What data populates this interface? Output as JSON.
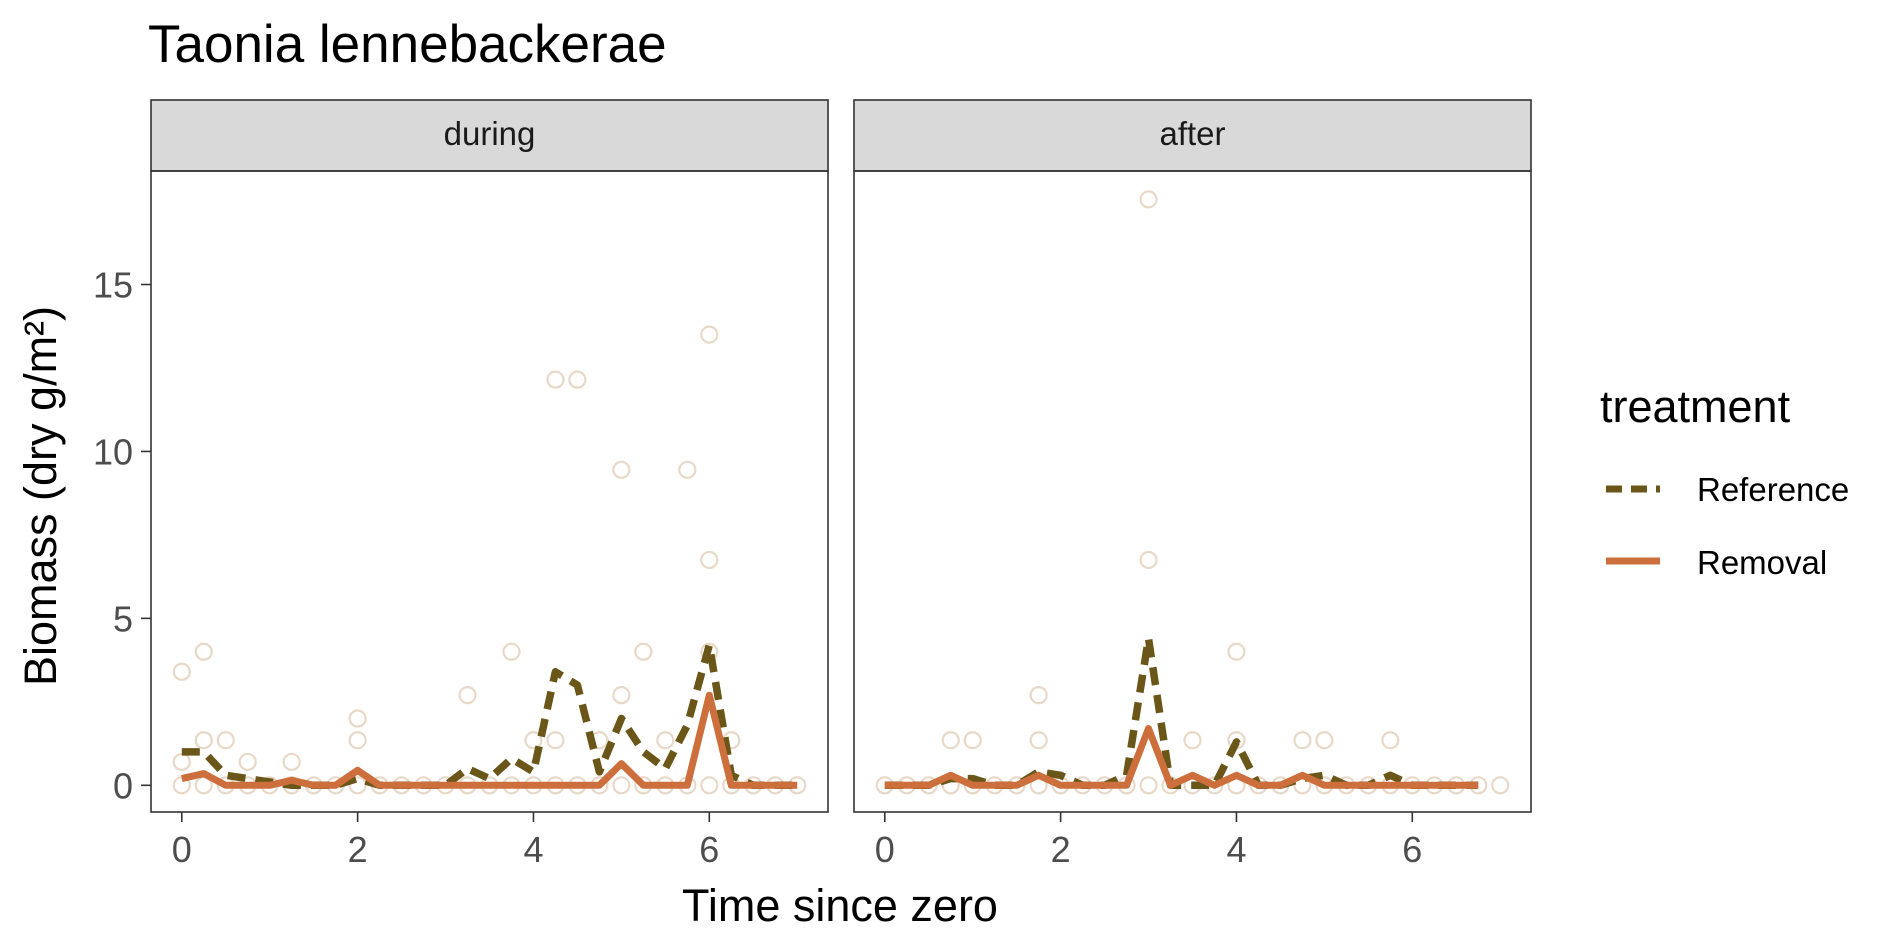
{
  "chart_data": {
    "type": "line",
    "title": "Taonia lennebackerae",
    "xlabel": "Time since zero",
    "ylabel": "Biomass (dry g/m²)",
    "ylim": [
      -0.8,
      18.4
    ],
    "yticks": [
      0,
      5,
      10,
      15
    ],
    "legend": {
      "title": "treatment",
      "position": "right",
      "entries": [
        {
          "label": "Reference",
          "color": "#6b561a",
          "style": "dashed"
        },
        {
          "label": "Removal",
          "color": "#cd6f3c",
          "style": "solid"
        }
      ]
    },
    "facets": [
      {
        "label": "during",
        "xlim": [
          -0.35,
          7.35
        ],
        "xticks": [
          0,
          2,
          4,
          6
        ],
        "series": [
          {
            "name": "Reference",
            "x": [
              0,
              0.25,
              0.5,
              0.75,
              1,
              1.25,
              1.5,
              1.75,
              2,
              2.25,
              2.5,
              2.75,
              3,
              3.25,
              3.5,
              3.75,
              4,
              4.25,
              4.5,
              4.75,
              5,
              5.25,
              5.5,
              5.75,
              6,
              6.25,
              6.5,
              6.75,
              7
            ],
            "y": [
              1.0,
              1.0,
              0.3,
              0.2,
              0.1,
              0,
              0,
              0,
              0.2,
              0,
              0,
              0,
              0,
              0.5,
              0.2,
              0.8,
              0.4,
              3.4,
              3.0,
              0.4,
              2.0,
              1.0,
              0.5,
              1.8,
              4.2,
              0.3,
              0,
              0,
              0
            ]
          },
          {
            "name": "Removal",
            "x": [
              0,
              0.25,
              0.5,
              0.75,
              1,
              1.25,
              1.5,
              1.75,
              2,
              2.25,
              2.5,
              2.75,
              3,
              3.25,
              3.5,
              3.75,
              4,
              4.25,
              4.5,
              4.75,
              5,
              5.25,
              5.5,
              5.75,
              6,
              6.25,
              6.5,
              6.75,
              7
            ],
            "y": [
              0.2,
              0.35,
              0,
              0,
              0,
              0.15,
              0,
              0,
              0.45,
              0,
              0,
              0,
              0,
              0,
              0,
              0,
              0,
              0,
              0,
              0,
              0.65,
              0,
              0,
              0,
              2.7,
              0,
              0,
              0,
              0
            ]
          }
        ],
        "points": [
          {
            "x": 0,
            "y": 3.4
          },
          {
            "x": 0.25,
            "y": 4.0
          },
          {
            "x": 0,
            "y": 0.7
          },
          {
            "x": 0.25,
            "y": 1.35
          },
          {
            "x": 0.5,
            "y": 1.35
          },
          {
            "x": 0.75,
            "y": 0.7
          },
          {
            "x": 1.25,
            "y": 0.7
          },
          {
            "x": 2,
            "y": 2.0
          },
          {
            "x": 2,
            "y": 1.35
          },
          {
            "x": 3.25,
            "y": 2.7
          },
          {
            "x": 3.75,
            "y": 4.0
          },
          {
            "x": 4,
            "y": 1.35
          },
          {
            "x": 4.25,
            "y": 12.15
          },
          {
            "x": 4.5,
            "y": 12.15
          },
          {
            "x": 4.25,
            "y": 1.35
          },
          {
            "x": 4.75,
            "y": 1.35
          },
          {
            "x": 5,
            "y": 9.45
          },
          {
            "x": 5,
            "y": 2.7
          },
          {
            "x": 5.25,
            "y": 4.0
          },
          {
            "x": 5.5,
            "y": 1.35
          },
          {
            "x": 5.75,
            "y": 9.45
          },
          {
            "x": 6,
            "y": 13.5
          },
          {
            "x": 6,
            "y": 6.75
          },
          {
            "x": 6,
            "y": 4.0
          },
          {
            "x": 6.25,
            "y": 1.35
          },
          {
            "x": 0,
            "y": 0
          },
          {
            "x": 0.25,
            "y": 0
          },
          {
            "x": 0.5,
            "y": 0
          },
          {
            "x": 0.75,
            "y": 0
          },
          {
            "x": 1,
            "y": 0
          },
          {
            "x": 1.25,
            "y": 0
          },
          {
            "x": 1.5,
            "y": 0
          },
          {
            "x": 1.75,
            "y": 0
          },
          {
            "x": 2,
            "y": 0
          },
          {
            "x": 2.25,
            "y": 0
          },
          {
            "x": 2.5,
            "y": 0
          },
          {
            "x": 2.75,
            "y": 0
          },
          {
            "x": 3,
            "y": 0
          },
          {
            "x": 3.25,
            "y": 0
          },
          {
            "x": 3.5,
            "y": 0
          },
          {
            "x": 3.75,
            "y": 0
          },
          {
            "x": 4,
            "y": 0
          },
          {
            "x": 4.25,
            "y": 0
          },
          {
            "x": 4.5,
            "y": 0
          },
          {
            "x": 4.75,
            "y": 0
          },
          {
            "x": 5,
            "y": 0
          },
          {
            "x": 5.25,
            "y": 0
          },
          {
            "x": 5.5,
            "y": 0
          },
          {
            "x": 5.75,
            "y": 0
          },
          {
            "x": 6,
            "y": 0
          },
          {
            "x": 6.25,
            "y": 0
          },
          {
            "x": 6.5,
            "y": 0
          },
          {
            "x": 6.75,
            "y": 0
          },
          {
            "x": 7,
            "y": 0
          }
        ]
      },
      {
        "label": "after",
        "xlim": [
          -0.35,
          7.35
        ],
        "xticks": [
          0,
          2,
          4,
          6
        ],
        "series": [
          {
            "name": "Reference",
            "x": [
              0,
              0.25,
              0.5,
              0.75,
              1,
              1.25,
              1.5,
              1.75,
              2,
              2.25,
              2.5,
              2.75,
              3,
              3.25,
              3.5,
              3.75,
              4,
              4.25,
              4.5,
              4.75,
              5,
              5.25,
              5.5,
              5.75,
              6,
              6.25,
              6.5,
              6.75
            ],
            "y": [
              0,
              0,
              0,
              0.2,
              0.2,
              0,
              0,
              0.4,
              0.3,
              0,
              0,
              0.3,
              4.4,
              0,
              0,
              0,
              1.3,
              0,
              0,
              0.2,
              0.3,
              0,
              0,
              0.3,
              0,
              0,
              0,
              0
            ]
          },
          {
            "name": "Removal",
            "x": [
              0,
              0.25,
              0.5,
              0.75,
              1,
              1.25,
              1.5,
              1.75,
              2,
              2.25,
              2.5,
              2.75,
              3,
              3.25,
              3.5,
              3.75,
              4,
              4.25,
              4.5,
              4.75,
              5,
              5.25,
              5.5,
              5.75,
              6,
              6.25,
              6.5,
              6.75
            ],
            "y": [
              0,
              0,
              0,
              0.3,
              0,
              0,
              0,
              0.3,
              0,
              0,
              0,
              0,
              1.7,
              0,
              0.3,
              0,
              0.3,
              0,
              0,
              0.3,
              0,
              0,
              0,
              0,
              0,
              0,
              0,
              0
            ]
          }
        ],
        "points": [
          {
            "x": 3,
            "y": 17.55
          },
          {
            "x": 3,
            "y": 6.75
          },
          {
            "x": 4,
            "y": 4.0
          },
          {
            "x": 1.75,
            "y": 2.7
          },
          {
            "x": 0.75,
            "y": 1.35
          },
          {
            "x": 1,
            "y": 1.35
          },
          {
            "x": 1.75,
            "y": 1.35
          },
          {
            "x": 3.5,
            "y": 1.35
          },
          {
            "x": 4,
            "y": 1.35
          },
          {
            "x": 4.75,
            "y": 1.35
          },
          {
            "x": 5,
            "y": 1.35
          },
          {
            "x": 5.75,
            "y": 1.35
          },
          {
            "x": 0,
            "y": 0
          },
          {
            "x": 0.25,
            "y": 0
          },
          {
            "x": 0.5,
            "y": 0
          },
          {
            "x": 0.75,
            "y": 0
          },
          {
            "x": 1,
            "y": 0
          },
          {
            "x": 1.25,
            "y": 0
          },
          {
            "x": 1.5,
            "y": 0
          },
          {
            "x": 1.75,
            "y": 0
          },
          {
            "x": 2,
            "y": 0
          },
          {
            "x": 2.25,
            "y": 0
          },
          {
            "x": 2.5,
            "y": 0
          },
          {
            "x": 2.75,
            "y": 0
          },
          {
            "x": 3,
            "y": 0
          },
          {
            "x": 3.25,
            "y": 0
          },
          {
            "x": 3.5,
            "y": 0
          },
          {
            "x": 3.75,
            "y": 0
          },
          {
            "x": 4,
            "y": 0
          },
          {
            "x": 4.25,
            "y": 0
          },
          {
            "x": 4.5,
            "y": 0
          },
          {
            "x": 4.75,
            "y": 0
          },
          {
            "x": 5,
            "y": 0
          },
          {
            "x": 5.25,
            "y": 0
          },
          {
            "x": 5.5,
            "y": 0
          },
          {
            "x": 5.75,
            "y": 0
          },
          {
            "x": 6,
            "y": 0
          },
          {
            "x": 6.25,
            "y": 0
          },
          {
            "x": 6.5,
            "y": 0
          },
          {
            "x": 6.75,
            "y": 0
          },
          {
            "x": 7,
            "y": 0
          }
        ]
      }
    ],
    "grid": false,
    "point_color": "#e8d8c8"
  }
}
